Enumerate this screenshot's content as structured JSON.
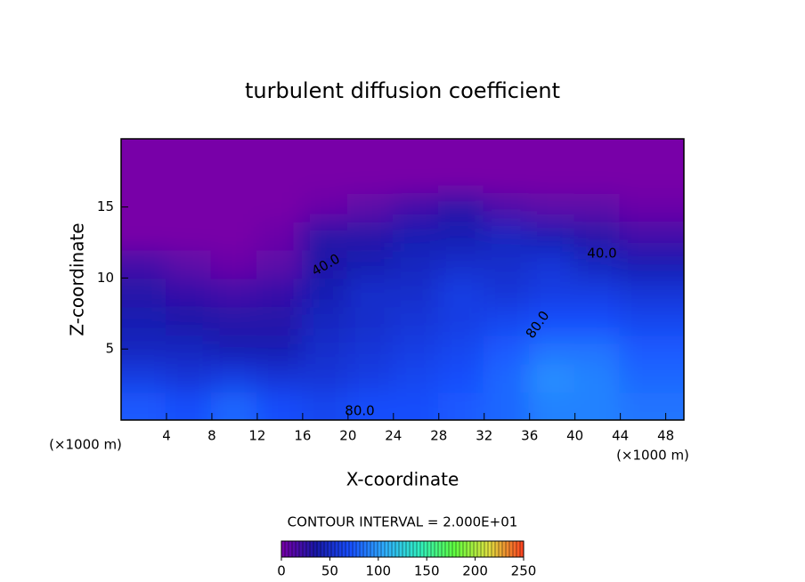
{
  "chart_data": {
    "type": "contour",
    "title": "turbulent diffusion coefficient",
    "x_label": "X-coordinate",
    "y_label": "Z-coordinate",
    "x_unit": "(×1000 m)",
    "y_unit": "(×1000 m)",
    "xlim": [
      0,
      49.6
    ],
    "ylim": [
      0,
      19.8
    ],
    "xticks": [
      4,
      8,
      12,
      16,
      20,
      24,
      28,
      32,
      36,
      40,
      44,
      48
    ],
    "yticks": [
      5,
      10,
      15
    ],
    "x": [
      2,
      6,
      10,
      14,
      18,
      22,
      26,
      30,
      34,
      38,
      42,
      46
    ],
    "z": [
      1,
      3,
      5,
      7,
      9,
      11,
      13,
      15,
      17,
      19
    ],
    "values": [
      [
        75,
        70,
        80,
        70,
        65,
        70,
        70,
        75,
        80,
        90,
        90,
        85
      ],
      [
        60,
        55,
        60,
        55,
        55,
        60,
        65,
        70,
        80,
        95,
        90,
        80
      ],
      [
        45,
        45,
        40,
        40,
        50,
        55,
        60,
        65,
        75,
        85,
        85,
        75
      ],
      [
        40,
        35,
        30,
        30,
        45,
        50,
        55,
        60,
        65,
        70,
        70,
        65
      ],
      [
        30,
        25,
        20,
        25,
        40,
        50,
        50,
        60,
        55,
        60,
        60,
        55
      ],
      [
        20,
        10,
        5,
        10,
        35,
        40,
        45,
        50,
        50,
        55,
        45,
        40
      ],
      [
        0,
        0,
        0,
        5,
        30,
        30,
        40,
        40,
        45,
        40,
        30,
        20
      ],
      [
        0,
        0,
        0,
        0,
        5,
        10,
        20,
        30,
        15,
        10,
        10,
        5
      ],
      [
        0,
        0,
        0,
        0,
        0,
        0,
        0,
        0,
        0,
        0,
        0,
        0
      ],
      [
        0,
        0,
        0,
        0,
        0,
        0,
        0,
        0,
        0,
        0,
        0,
        0
      ]
    ],
    "contour_labels": [
      "40.0",
      "40.0",
      "80.0",
      "80.0"
    ],
    "contour_interval": "CONTOUR INTERVAL = 2.000E+01",
    "colorbar": {
      "lim": [
        0,
        250
      ],
      "ticks": [
        0,
        50,
        100,
        150,
        200,
        250
      ]
    },
    "colormap": [
      "#7800a8",
      "#1818a8",
      "#1850ff",
      "#30b0ff",
      "#30f0c0",
      "#60ff40",
      "#e0e040",
      "#ff4020"
    ]
  }
}
